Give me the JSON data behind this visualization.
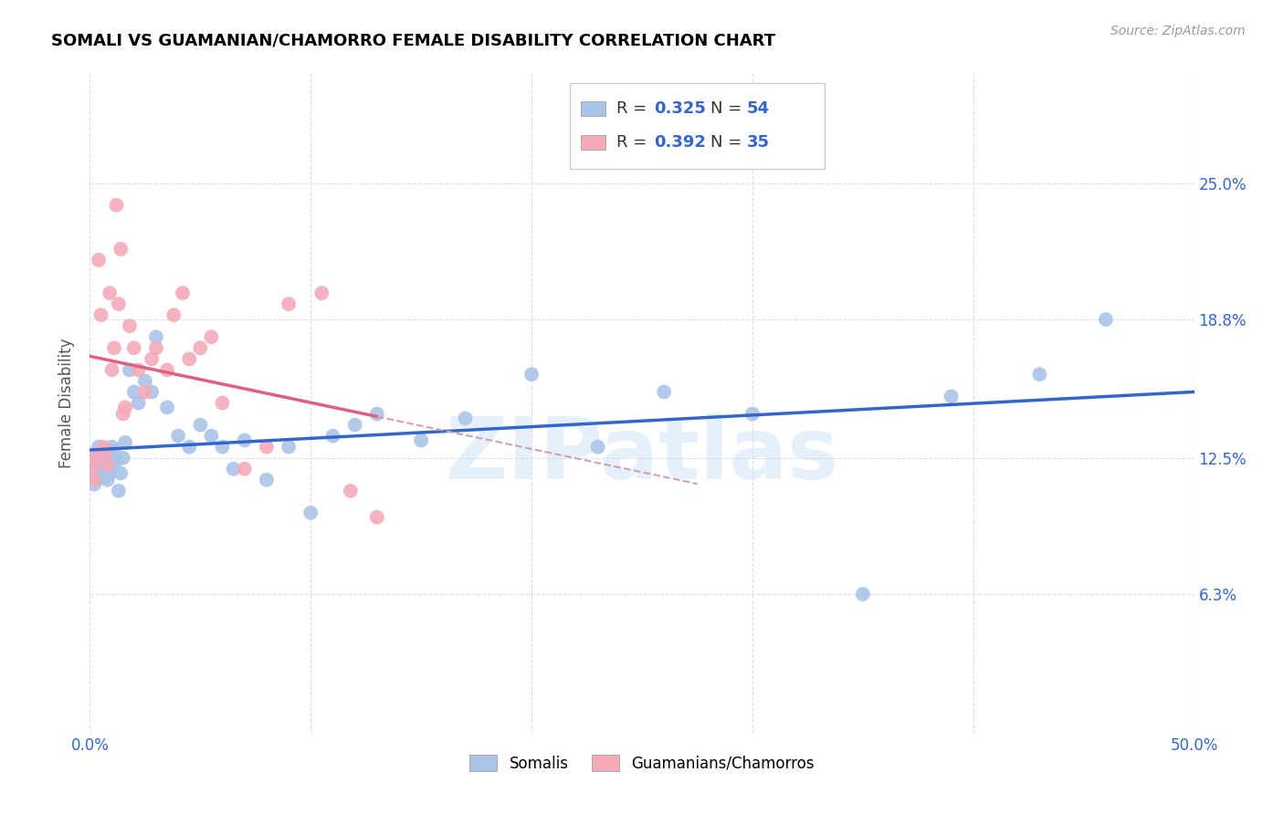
{
  "title": "SOMALI VS GUAMANIAN/CHAMORRO FEMALE DISABILITY CORRELATION CHART",
  "source": "Source: ZipAtlas.com",
  "ylabel": "Female Disability",
  "x_min": 0.0,
  "x_max": 0.5,
  "y_min": 0.0,
  "y_max": 0.3,
  "y_ticks_right": [
    0.063,
    0.125,
    0.188,
    0.25
  ],
  "y_tick_labels_right": [
    "6.3%",
    "12.5%",
    "18.8%",
    "25.0%"
  ],
  "grid_color": "#dddddd",
  "somali_color": "#aac4e8",
  "guam_color": "#f4aab9",
  "somali_line_color": "#3366cc",
  "guam_line_color": "#e06080",
  "guam_line_dashed_color": "#d0a0b0",
  "watermark_text": "ZIPatlas",
  "somali_x": [
    0.001,
    0.002,
    0.003,
    0.003,
    0.004,
    0.004,
    0.005,
    0.005,
    0.006,
    0.006,
    0.007,
    0.007,
    0.008,
    0.008,
    0.009,
    0.009,
    0.01,
    0.01,
    0.011,
    0.012,
    0.013,
    0.014,
    0.015,
    0.016,
    0.018,
    0.02,
    0.022,
    0.025,
    0.028,
    0.03,
    0.035,
    0.04,
    0.045,
    0.05,
    0.055,
    0.06,
    0.065,
    0.07,
    0.08,
    0.09,
    0.1,
    0.11,
    0.12,
    0.13,
    0.15,
    0.17,
    0.2,
    0.23,
    0.26,
    0.3,
    0.35,
    0.39,
    0.43,
    0.46
  ],
  "somali_y": [
    0.12,
    0.113,
    0.118,
    0.126,
    0.122,
    0.13,
    0.119,
    0.127,
    0.116,
    0.124,
    0.121,
    0.129,
    0.115,
    0.123,
    0.118,
    0.126,
    0.122,
    0.13,
    0.128,
    0.124,
    0.11,
    0.118,
    0.125,
    0.132,
    0.165,
    0.155,
    0.15,
    0.16,
    0.155,
    0.18,
    0.148,
    0.135,
    0.13,
    0.14,
    0.135,
    0.13,
    0.12,
    0.133,
    0.115,
    0.13,
    0.1,
    0.135,
    0.14,
    0.145,
    0.133,
    0.143,
    0.163,
    0.13,
    0.155,
    0.145,
    0.063,
    0.153,
    0.163,
    0.188
  ],
  "guam_x": [
    0.001,
    0.002,
    0.003,
    0.004,
    0.005,
    0.006,
    0.007,
    0.008,
    0.009,
    0.01,
    0.011,
    0.012,
    0.013,
    0.014,
    0.015,
    0.016,
    0.018,
    0.02,
    0.022,
    0.025,
    0.028,
    0.03,
    0.035,
    0.038,
    0.042,
    0.045,
    0.05,
    0.055,
    0.06,
    0.07,
    0.08,
    0.09,
    0.105,
    0.118,
    0.13
  ],
  "guam_y": [
    0.12,
    0.115,
    0.125,
    0.215,
    0.19,
    0.13,
    0.128,
    0.122,
    0.2,
    0.165,
    0.175,
    0.24,
    0.195,
    0.22,
    0.145,
    0.148,
    0.185,
    0.175,
    0.165,
    0.155,
    0.17,
    0.175,
    0.165,
    0.19,
    0.2,
    0.17,
    0.175,
    0.18,
    0.15,
    0.12,
    0.13,
    0.195,
    0.2,
    0.11,
    0.098
  ]
}
